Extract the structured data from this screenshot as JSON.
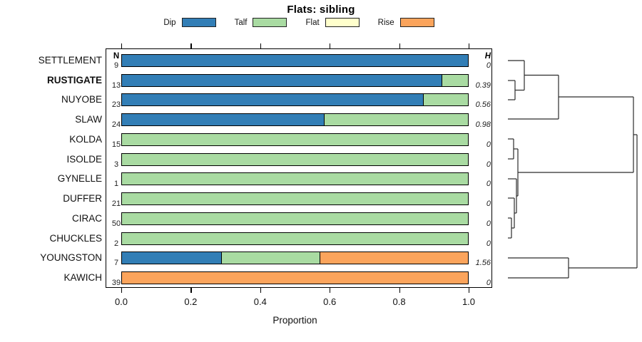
{
  "chart": {
    "title": "Flats: sibling",
    "n_header": "N",
    "h_header": "H",
    "xlabel": "Proportion"
  },
  "chart_data": {
    "type": "bar",
    "subtype": "horizontal-stacked-proportion",
    "title": "Flats: sibling",
    "xlabel": "Proportion",
    "xlim": [
      0.0,
      1.0
    ],
    "x_tick_values": [
      0.0,
      0.2,
      0.4,
      0.6,
      0.8,
      1.0
    ],
    "x_tick_labels": [
      "0.0",
      "0.2",
      "0.4",
      "0.6",
      "0.8",
      "1.0"
    ],
    "legend": [
      {
        "label": "Dip",
        "color": "#327eb6"
      },
      {
        "label": "Talf",
        "color": "#a9dba2"
      },
      {
        "label": "Flat",
        "color": "#ffffcc"
      },
      {
        "label": "Rise",
        "color": "#fba45c"
      }
    ],
    "columns": {
      "left_values": "N",
      "right_values": "H"
    },
    "rows": [
      {
        "name": "SETTLEMENT",
        "bold": false,
        "n": 9,
        "h": "0",
        "segments": [
          {
            "category": "Dip",
            "value": 1.0
          }
        ]
      },
      {
        "name": "RUSTIGATE",
        "bold": true,
        "n": 13,
        "h": "0.39",
        "segments": [
          {
            "category": "Dip",
            "value": 0.923
          },
          {
            "category": "Talf",
            "value": 0.077
          }
        ]
      },
      {
        "name": "NUYOBE",
        "bold": false,
        "n": 23,
        "h": "0.56",
        "segments": [
          {
            "category": "Dip",
            "value": 0.87
          },
          {
            "category": "Talf",
            "value": 0.13
          }
        ]
      },
      {
        "name": "SLAW",
        "bold": false,
        "n": 24,
        "h": "0.98",
        "segments": [
          {
            "category": "Dip",
            "value": 0.583
          },
          {
            "category": "Talf",
            "value": 0.417
          }
        ]
      },
      {
        "name": "KOLDA",
        "bold": false,
        "n": 15,
        "h": "0",
        "segments": [
          {
            "category": "Talf",
            "value": 1.0
          }
        ]
      },
      {
        "name": "ISOLDE",
        "bold": false,
        "n": 3,
        "h": "0",
        "segments": [
          {
            "category": "Talf",
            "value": 1.0
          }
        ]
      },
      {
        "name": "GYNELLE",
        "bold": false,
        "n": 1,
        "h": "0",
        "segments": [
          {
            "category": "Talf",
            "value": 1.0
          }
        ]
      },
      {
        "name": "DUFFER",
        "bold": false,
        "n": 21,
        "h": "0",
        "segments": [
          {
            "category": "Talf",
            "value": 1.0
          }
        ]
      },
      {
        "name": "CIRAC",
        "bold": false,
        "n": 50,
        "h": "0",
        "segments": [
          {
            "category": "Talf",
            "value": 1.0
          }
        ]
      },
      {
        "name": "CHUCKLES",
        "bold": false,
        "n": 2,
        "h": "0",
        "segments": [
          {
            "category": "Talf",
            "value": 1.0
          }
        ]
      },
      {
        "name": "YOUNGSTON",
        "bold": false,
        "n": 7,
        "h": "1.56",
        "segments": [
          {
            "category": "Dip",
            "value": 0.286
          },
          {
            "category": "Talf",
            "value": 0.285
          },
          {
            "category": "Rise",
            "value": 0.429
          }
        ]
      },
      {
        "name": "KAWICH",
        "bold": false,
        "n": 39,
        "h": "0",
        "segments": [
          {
            "category": "Rise",
            "value": 1.0
          }
        ]
      }
    ],
    "dendrogram_segments": [
      [
        712,
        85,
        735,
        85
      ],
      [
        735,
        85,
        735,
        126.5
      ],
      [
        712,
        113,
        722,
        113
      ],
      [
        712,
        140,
        722,
        140
      ],
      [
        722,
        113,
        722,
        140
      ],
      [
        722,
        126.5,
        735,
        126.5
      ],
      [
        735,
        105.5,
        783,
        105.5
      ],
      [
        712,
        167,
        783,
        167
      ],
      [
        783,
        105.5,
        783,
        167
      ],
      [
        783,
        136,
        888,
        136
      ],
      [
        712,
        195,
        720,
        195
      ],
      [
        712,
        223,
        720,
        223
      ],
      [
        720,
        195,
        720,
        223
      ],
      [
        720,
        209,
        726,
        209
      ],
      [
        712,
        251,
        724,
        251
      ],
      [
        712,
        278,
        721,
        278
      ],
      [
        712,
        306,
        717,
        306
      ],
      [
        712,
        334,
        717,
        334
      ],
      [
        717,
        306,
        717,
        334
      ],
      [
        717,
        320,
        721,
        320
      ],
      [
        721,
        278,
        721,
        320
      ],
      [
        721,
        299,
        724,
        299
      ],
      [
        724,
        251,
        724,
        299
      ],
      [
        724,
        275,
        726,
        275
      ],
      [
        726,
        209,
        726,
        275
      ],
      [
        726,
        242,
        888,
        242
      ],
      [
        888,
        136,
        888,
        242
      ],
      [
        888,
        189,
        893,
        189
      ],
      [
        712,
        362,
        797,
        362
      ],
      [
        712,
        390,
        797,
        390
      ],
      [
        797,
        362,
        797,
        390
      ],
      [
        797,
        376,
        893,
        376
      ],
      [
        893,
        189,
        893,
        376
      ]
    ],
    "grid": false,
    "legend_position": "top"
  }
}
